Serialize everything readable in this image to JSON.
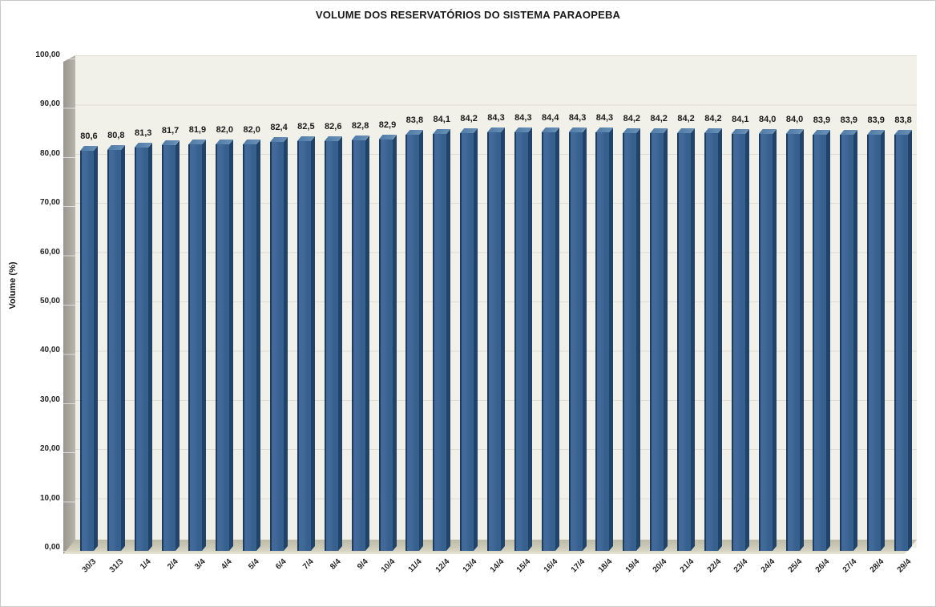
{
  "chart_data": {
    "type": "bar",
    "title": "VOLUME DOS RESERVATÓRIOS DO SISTEMA PARAOPEBA",
    "xlabel": "",
    "ylabel": "Volume (%)",
    "ylim": [
      0,
      100
    ],
    "ytick_step": 10,
    "ytick_labels": [
      "0,00",
      "10,00",
      "20,00",
      "30,00",
      "40,00",
      "50,00",
      "60,00",
      "70,00",
      "80,00",
      "90,00",
      "100,00"
    ],
    "grid": true,
    "legend": false,
    "style": "3d-column",
    "categories": [
      "30/3",
      "31/3",
      "1/4",
      "2/4",
      "3/4",
      "4/4",
      "5/4",
      "6/4",
      "7/4",
      "8/4",
      "9/4",
      "10/4",
      "11/4",
      "12/4",
      "13/4",
      "14/4",
      "15/4",
      "16/4",
      "17/4",
      "18/4",
      "19/4",
      "20/4",
      "21/4",
      "22/4",
      "23/4",
      "24/4",
      "25/4",
      "26/4",
      "27/4",
      "28/4",
      "29/4"
    ],
    "values": [
      80.6,
      80.8,
      81.3,
      81.7,
      81.9,
      82.0,
      82.0,
      82.4,
      82.5,
      82.6,
      82.8,
      82.9,
      83.8,
      84.1,
      84.2,
      84.3,
      84.3,
      84.4,
      84.3,
      84.3,
      84.2,
      84.2,
      84.2,
      84.2,
      84.1,
      84.0,
      84.0,
      83.9,
      83.9,
      83.9,
      83.8
    ],
    "value_labels": [
      "80,6",
      "80,8",
      "81,3",
      "81,7",
      "81,9",
      "82,0",
      "82,0",
      "82,4",
      "82,5",
      "82,6",
      "82,8",
      "82,9",
      "83,8",
      "84,1",
      "84,2",
      "84,3",
      "84,3",
      "84,4",
      "84,3",
      "84,3",
      "84,2",
      "84,2",
      "84,2",
      "84,2",
      "84,1",
      "84,0",
      "84,0",
      "83,9",
      "83,9",
      "83,9",
      "83,8"
    ],
    "colors": {
      "bar_front": "#36618F",
      "bar_front_light": "#41699A",
      "bar_edge": "#1E3C60",
      "bar_side": "#21436A",
      "bar_top": "#4E7AA6",
      "plot_bg": "#F2F1E9",
      "grid": "#DEDCD0",
      "wall": "#A5A39A",
      "floor": "#CBC8B5",
      "text": "#1A1A1A"
    }
  }
}
